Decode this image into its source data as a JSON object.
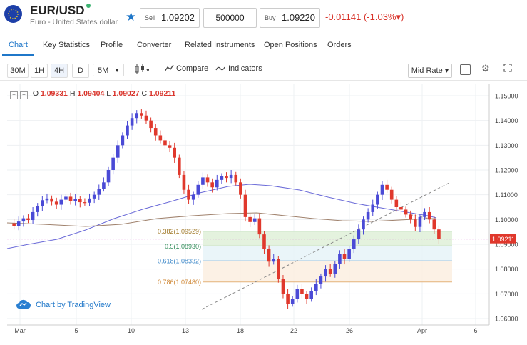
{
  "header": {
    "symbol": "EUR/USD",
    "subtitle": "Euro - United States dollar",
    "sell_label": "Sell",
    "sell_price": "1.09202",
    "quantity": "500000",
    "buy_label": "Buy",
    "buy_price": "1.09220",
    "change": "-0.01141  (-1.03%▾)"
  },
  "tabs": [
    {
      "label": "Chart"
    },
    {
      "label": "Key Statistics"
    },
    {
      "label": "Profile"
    },
    {
      "label": "Converter"
    },
    {
      "label": "Related Instruments"
    },
    {
      "label": "Open Positions"
    },
    {
      "label": "Orders"
    }
  ],
  "toolbar": {
    "intervals": [
      "30M",
      "1H",
      "4H",
      "D",
      "5M"
    ],
    "selected_interval": "4H",
    "compare_label": "Compare",
    "indicators_label": "Indicators",
    "rate_select": "Mid Rate ▾"
  },
  "ohlc": {
    "o_label": "O",
    "o": "1.09331",
    "h_label": "H",
    "h": "1.09404",
    "l_label": "L",
    "l": "1.09027",
    "c_label": "C",
    "c": "1.09211"
  },
  "chart": {
    "y_ticks": [
      "1.15000",
      "1.14000",
      "1.13000",
      "1.12000",
      "1.11000",
      "1.10000",
      "1.09000",
      "1.08000",
      "1.07000",
      "1.06000"
    ],
    "x_ticks": [
      "Mar",
      "5",
      "10",
      "13",
      "18",
      "22",
      "26",
      "Apr",
      "6"
    ],
    "current_price": "1.09211",
    "fib": [
      {
        "label": "0.382(1.09529)"
      },
      {
        "label": "0.5(1.08930)"
      },
      {
        "label": "0.618(1.08332)"
      },
      {
        "label": "0.786(1.07480)"
      }
    ],
    "logo_text": "Chart by TradingView",
    "colors": {
      "up": "#4a4ad6",
      "down": "#e0382c",
      "ma_blue": "#6b6bd8",
      "ma_brown": "#a0826d"
    }
  }
}
